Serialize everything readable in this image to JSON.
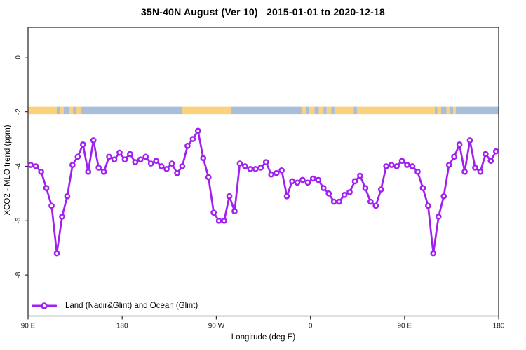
{
  "figure": {
    "title": "35N-40N August (Ver 10)   2015-01-01 to 2020-12-18",
    "background": "#ffffff"
  },
  "legend": {
    "label": "Land (Nadir&Glint) and Ocean (Glint)"
  },
  "chart_data": {
    "type": "line",
    "title": "35N-40N August (Ver 10)   2015-01-01 to 2020-12-18",
    "xlabel": "Longitude (deg E)",
    "ylabel": "XCO2 - MLO trend (ppm)",
    "xlim": [
      90,
      540
    ],
    "ylim": [
      -9.5,
      1.1
    ],
    "grid": false,
    "legend_position": "bottom-left",
    "x_ticks": {
      "values": [
        90,
        180,
        270,
        360,
        450,
        540
      ],
      "labels": [
        "90 E",
        "180",
        "90 W",
        "0",
        "90 E",
        "180"
      ]
    },
    "y_ticks": {
      "values": [
        0,
        -2,
        -4,
        -6,
        -8
      ],
      "labels": [
        "0",
        "-2",
        "-4",
        "-6",
        "-8"
      ]
    },
    "colors": {
      "series": "#A020F0",
      "marker_fill": "#ffffff",
      "band_land": "#FBD17E",
      "band_ocean": "#A8BFDC",
      "axis": "#333333"
    },
    "band": {
      "description": "land-ocean map strip drawn near y = -2",
      "y_top": -1.82,
      "y_bottom": -2.09,
      "segments": [
        [
          90,
          117.5,
          "land"
        ],
        [
          117.5,
          120.5,
          "ocean"
        ],
        [
          120.5,
          124,
          "land"
        ],
        [
          124,
          129.5,
          "ocean"
        ],
        [
          129.5,
          133,
          "land"
        ],
        [
          133,
          136,
          "ocean"
        ],
        [
          136,
          141,
          "land"
        ],
        [
          141,
          237,
          "ocean"
        ],
        [
          237,
          284.5,
          "land"
        ],
        [
          284.5,
          351.5,
          "ocean"
        ],
        [
          351.5,
          356,
          "land"
        ],
        [
          356,
          359,
          "ocean"
        ],
        [
          359,
          364,
          "land"
        ],
        [
          364,
          368,
          "ocean"
        ],
        [
          368,
          372.5,
          "land"
        ],
        [
          372.5,
          375.5,
          "ocean"
        ],
        [
          375.5,
          380,
          "land"
        ],
        [
          380,
          383,
          "ocean"
        ],
        [
          383,
          401.5,
          "land"
        ],
        [
          401.5,
          404.5,
          "ocean"
        ],
        [
          404.5,
          479,
          "land"
        ],
        [
          479,
          481.5,
          "ocean"
        ],
        [
          481.5,
          485,
          "land"
        ],
        [
          485,
          490,
          "ocean"
        ],
        [
          490,
          493.5,
          "land"
        ],
        [
          493.5,
          496.5,
          "ocean"
        ],
        [
          496.5,
          499,
          "land"
        ],
        [
          499,
          540,
          "ocean"
        ]
      ]
    },
    "series": [
      {
        "name": "Land (Nadir&Glint) and Ocean (Glint)",
        "marker": "open-circle",
        "x": [
          92.5,
          97.5,
          102.5,
          107.5,
          112.5,
          117.5,
          122.5,
          127.5,
          132.5,
          137.5,
          142.5,
          147.5,
          152.5,
          157.5,
          162.5,
          167.5,
          172.5,
          177.5,
          182.5,
          187.5,
          192.5,
          197.5,
          202.5,
          207.5,
          212.5,
          217.5,
          222.5,
          227.5,
          232.5,
          237.5,
          242.5,
          247.5,
          252.5,
          257.5,
          262.5,
          267.5,
          272.5,
          277.5,
          282.5,
          287.5,
          292.5,
          297.5,
          302.5,
          307.5,
          312.5,
          317.5,
          322.5,
          327.5,
          332.5,
          337.5,
          342.5,
          347.5,
          352.5,
          357.5,
          362.5,
          367.5,
          372.5,
          377.5,
          382.5,
          387.5,
          392.5,
          397.5,
          402.5,
          407.5,
          412.5,
          417.5,
          422.5,
          427.5,
          432.5,
          437.5,
          442.5,
          447.5,
          452.5,
          457.5,
          462.5,
          467.5,
          472.5,
          477.5,
          482.5,
          487.5,
          492.5,
          497.5,
          502.5,
          507.5,
          512.5,
          517.5,
          522.5,
          527.5,
          532.5,
          537.5
        ],
        "y": [
          -3.95,
          -4.0,
          -4.2,
          -4.8,
          -5.45,
          -7.2,
          -5.85,
          -5.1,
          -3.95,
          -3.65,
          -3.2,
          -4.2,
          -3.05,
          -4.05,
          -4.2,
          -3.65,
          -3.75,
          -3.5,
          -3.75,
          -3.55,
          -3.85,
          -3.75,
          -3.65,
          -3.9,
          -3.8,
          -4.0,
          -4.1,
          -3.9,
          -4.25,
          -4.0,
          -3.25,
          -3.0,
          -2.7,
          -3.7,
          -4.4,
          -5.7,
          -6.0,
          -6.0,
          -5.1,
          -5.65,
          -3.9,
          -4.0,
          -4.1,
          -4.1,
          -4.05,
          -3.85,
          -4.3,
          -4.25,
          -4.15,
          -5.1,
          -4.55,
          -4.6,
          -4.5,
          -4.6,
          -4.45,
          -4.5,
          -4.8,
          -5.0,
          -5.3,
          -5.3,
          -5.05,
          -4.95,
          -4.55,
          -4.35,
          -4.8,
          -5.3,
          -5.45,
          -4.85,
          -4.0,
          -3.95,
          -4.0,
          -3.8,
          -3.95,
          -4.0,
          -4.2,
          -4.8,
          -5.45,
          -7.2,
          -5.85,
          -5.1,
          -3.95,
          -3.65,
          -3.2,
          -4.2,
          -3.05,
          -4.05,
          -4.2,
          -3.55,
          -3.8,
          -3.45
        ]
      }
    ]
  }
}
